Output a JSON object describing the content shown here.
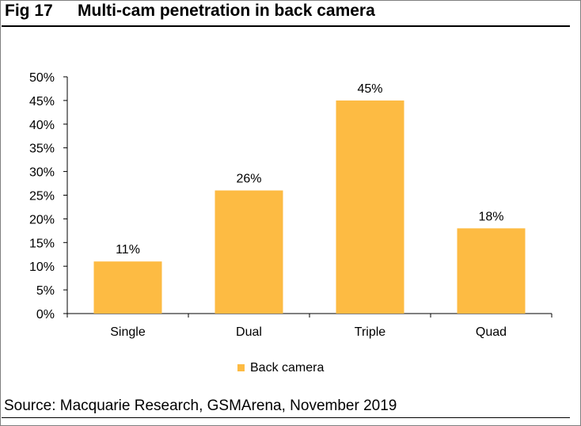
{
  "figure": {
    "number": "Fig 17",
    "title": "Multi-cam penetration in back camera",
    "source": "Source: Macquarie Research, GSMArena, November 2019"
  },
  "colors": {
    "bar": "#FDBB43",
    "axis": "#000000",
    "text": "#000000"
  },
  "chart_data": {
    "type": "bar",
    "title": "",
    "xlabel": "",
    "ylabel": "",
    "categories": [
      "Single",
      "Dual",
      "Triple",
      "Quad"
    ],
    "series": [
      {
        "name": "Back camera",
        "values": [
          11,
          26,
          45,
          18
        ],
        "labels": [
          "11%",
          "26%",
          "45%",
          "18%"
        ]
      }
    ],
    "ylim": [
      0,
      50
    ],
    "yticks": [
      0,
      5,
      10,
      15,
      20,
      25,
      30,
      35,
      40,
      45,
      50
    ],
    "ytick_labels": [
      "0%",
      "5%",
      "10%",
      "15%",
      "20%",
      "25%",
      "30%",
      "35%",
      "40%",
      "45%",
      "50%"
    ],
    "grid": false,
    "legend_position": "bottom"
  }
}
